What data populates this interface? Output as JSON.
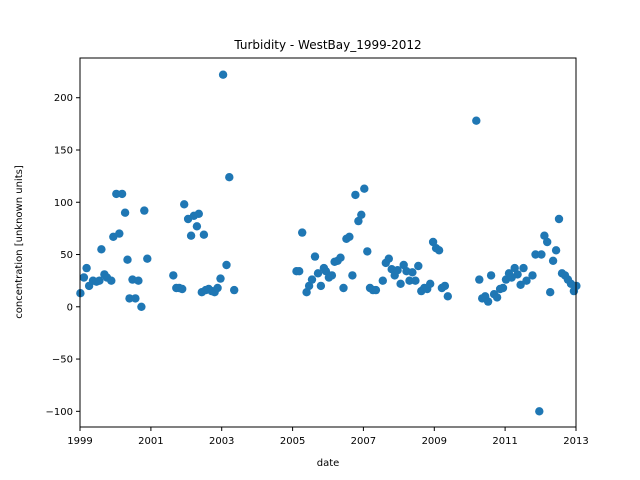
{
  "chart_data": {
    "type": "scatter",
    "title": "Turbidity - WestBay_1999-2012",
    "xlabel": "date",
    "ylabel": "concentration [unknown units]",
    "xlim": [
      "1999-01-01",
      "2013-01-01"
    ],
    "ylim": [
      -115,
      238
    ],
    "x_ticks": [
      "1999",
      "2001",
      "2003",
      "2005",
      "2007",
      "2009",
      "2011",
      "2013"
    ],
    "y_ticks": [
      -100,
      -50,
      0,
      50,
      100,
      150,
      200
    ],
    "grid": false,
    "color": "#1f77b4",
    "points": [
      [
        "1999-01-05",
        13
      ],
      [
        "1999-02-10",
        28
      ],
      [
        "1999-03-10",
        37
      ],
      [
        "1999-04-05",
        20
      ],
      [
        "1999-05-15",
        25
      ],
      [
        "1999-06-20",
        24
      ],
      [
        "1999-07-20",
        25
      ],
      [
        "1999-08-10",
        55
      ],
      [
        "1999-09-10",
        31
      ],
      [
        "1999-10-05",
        28
      ],
      [
        "1999-11-20",
        25
      ],
      [
        "1999-12-10",
        67
      ],
      [
        "2000-01-10",
        108
      ],
      [
        "2000-02-10",
        70
      ],
      [
        "2000-03-10",
        108
      ],
      [
        "2000-04-10",
        90
      ],
      [
        "2000-05-05",
        45
      ],
      [
        "2000-05-25",
        8
      ],
      [
        "2000-06-25",
        26
      ],
      [
        "2000-07-25",
        8
      ],
      [
        "2000-08-25",
        25
      ],
      [
        "2000-09-25",
        0
      ],
      [
        "2000-10-25",
        92
      ],
      [
        "2000-11-25",
        46
      ],
      [
        "2001-08-20",
        30
      ],
      [
        "2001-09-20",
        18
      ],
      [
        "2001-10-20",
        18
      ],
      [
        "2001-11-20",
        17
      ],
      [
        "2001-12-10",
        98
      ],
      [
        "2002-01-20",
        84
      ],
      [
        "2002-02-20",
        68
      ],
      [
        "2002-03-20",
        87
      ],
      [
        "2002-04-20",
        77
      ],
      [
        "2002-05-10",
        89
      ],
      [
        "2002-06-10",
        14
      ],
      [
        "2002-07-01",
        69
      ],
      [
        "2002-07-20",
        16
      ],
      [
        "2002-08-20",
        17
      ],
      [
        "2002-09-20",
        15
      ],
      [
        "2002-10-20",
        14
      ],
      [
        "2002-11-20",
        18
      ],
      [
        "2002-12-20",
        27
      ],
      [
        "2003-01-15",
        222
      ],
      [
        "2003-02-20",
        40
      ],
      [
        "2003-03-20",
        124
      ],
      [
        "2003-05-10",
        16
      ],
      [
        "2005-02-10",
        34
      ],
      [
        "2005-03-10",
        34
      ],
      [
        "2005-04-10",
        71
      ],
      [
        "2005-05-25",
        14
      ],
      [
        "2005-06-20",
        20
      ],
      [
        "2005-07-20",
        26
      ],
      [
        "2005-08-20",
        48
      ],
      [
        "2005-09-20",
        32
      ],
      [
        "2005-10-20",
        20
      ],
      [
        "2005-11-20",
        37
      ],
      [
        "2005-12-10",
        34
      ],
      [
        "2006-01-10",
        28
      ],
      [
        "2006-02-10",
        30
      ],
      [
        "2006-03-10",
        43
      ],
      [
        "2006-04-10",
        44
      ],
      [
        "2006-05-10",
        47
      ],
      [
        "2006-06-10",
        18
      ],
      [
        "2006-07-10",
        65
      ],
      [
        "2006-08-10",
        67
      ],
      [
        "2006-09-10",
        30
      ],
      [
        "2006-10-10",
        107
      ],
      [
        "2006-11-10",
        82
      ],
      [
        "2006-12-10",
        88
      ],
      [
        "2007-01-10",
        113
      ],
      [
        "2007-02-10",
        53
      ],
      [
        "2007-03-10",
        18
      ],
      [
        "2007-04-10",
        16
      ],
      [
        "2007-05-10",
        16
      ],
      [
        "2007-07-20",
        25
      ],
      [
        "2007-08-20",
        42
      ],
      [
        "2007-09-20",
        46
      ],
      [
        "2007-10-20",
        36
      ],
      [
        "2007-11-20",
        30
      ],
      [
        "2007-12-20",
        35
      ],
      [
        "2008-01-20",
        22
      ],
      [
        "2008-02-20",
        40
      ],
      [
        "2008-03-20",
        34
      ],
      [
        "2008-04-20",
        25
      ],
      [
        "2008-05-20",
        33
      ],
      [
        "2008-06-20",
        25
      ],
      [
        "2008-07-20",
        39
      ],
      [
        "2008-08-20",
        15
      ],
      [
        "2008-09-20",
        18
      ],
      [
        "2008-10-20",
        17
      ],
      [
        "2008-11-20",
        22
      ],
      [
        "2008-12-20",
        62
      ],
      [
        "2009-01-20",
        56
      ],
      [
        "2009-02-20",
        54
      ],
      [
        "2009-03-20",
        18
      ],
      [
        "2009-04-20",
        20
      ],
      [
        "2009-05-20",
        10
      ],
      [
        "2010-03-10",
        178
      ],
      [
        "2010-04-10",
        26
      ],
      [
        "2010-05-10",
        8
      ],
      [
        "2010-06-10",
        10
      ],
      [
        "2010-07-10",
        5
      ],
      [
        "2010-08-10",
        30
      ],
      [
        "2010-09-10",
        12
      ],
      [
        "2010-10-10",
        9
      ],
      [
        "2010-11-10",
        17
      ],
      [
        "2010-12-10",
        18
      ],
      [
        "2011-01-10",
        26
      ],
      [
        "2011-02-10",
        32
      ],
      [
        "2011-03-10",
        28
      ],
      [
        "2011-04-10",
        37
      ],
      [
        "2011-05-10",
        31
      ],
      [
        "2011-06-10",
        21
      ],
      [
        "2011-07-10",
        37
      ],
      [
        "2011-08-10",
        25
      ],
      [
        "2011-10-10",
        30
      ],
      [
        "2011-11-10",
        50
      ],
      [
        "2011-12-20",
        -100
      ],
      [
        "2012-01-10",
        50
      ],
      [
        "2012-02-10",
        68
      ],
      [
        "2012-03-10",
        62
      ],
      [
        "2012-04-10",
        14
      ],
      [
        "2012-05-10",
        44
      ],
      [
        "2012-06-10",
        54
      ],
      [
        "2012-07-10",
        84
      ],
      [
        "2012-08-10",
        32
      ],
      [
        "2012-09-10",
        30
      ],
      [
        "2012-10-10",
        26
      ],
      [
        "2012-11-10",
        22
      ],
      [
        "2012-12-10",
        15
      ],
      [
        "2013-01-05",
        20
      ]
    ]
  }
}
